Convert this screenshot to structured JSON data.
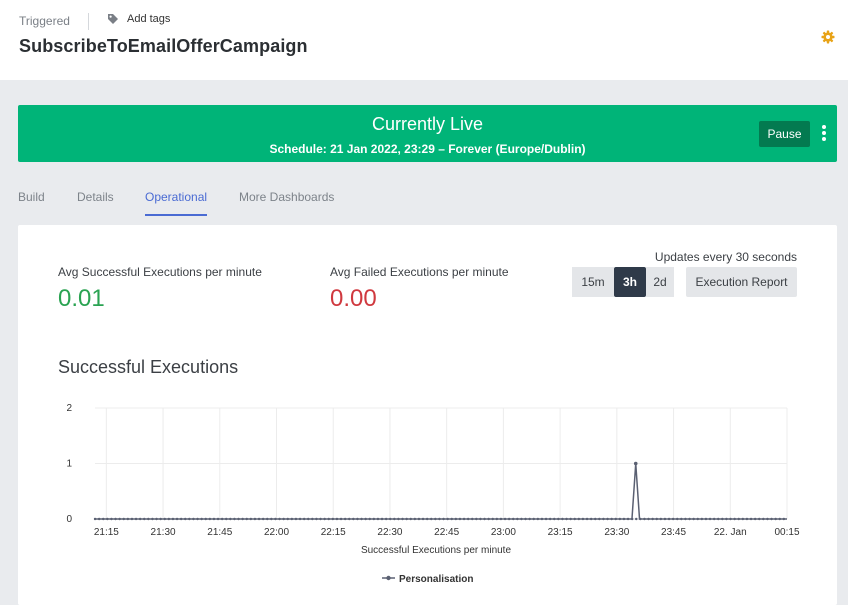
{
  "header": {
    "trigger_type": "Triggered",
    "add_tags_label": "Add tags",
    "campaign_name": "SubscribeToEmailOfferCampaign"
  },
  "banner": {
    "status": "Currently Live",
    "schedule": "Schedule: 21 Jan 2022, 23:29 – Forever (Europe/Dublin)",
    "pause_label": "Pause",
    "color": "#00b478"
  },
  "tabs": [
    {
      "label": "Build",
      "active": false
    },
    {
      "label": "Details",
      "active": false
    },
    {
      "label": "Operational",
      "active": true
    },
    {
      "label": "More Dashboards",
      "active": false
    }
  ],
  "stats": {
    "success_label": "Avg Successful Executions per minute",
    "success_value": "0.01",
    "success_color": "#2aa352",
    "failed_label": "Avg Failed Executions per minute",
    "failed_value": "0.00",
    "failed_color": "#d0393f"
  },
  "controls": {
    "updates_text": "Updates every 30 seconds",
    "ranges": [
      {
        "label": "15m",
        "active": false
      },
      {
        "label": "3h",
        "active": true
      },
      {
        "label": "2d",
        "active": false
      }
    ],
    "report_label": "Execution Report"
  },
  "chart": {
    "title": "Successful Executions",
    "xlabel": "Successful Executions per minute",
    "legend": "Personalisation",
    "ytick_labels": [
      "0",
      "1",
      "2"
    ],
    "xtick_labels": [
      "21:15",
      "21:30",
      "21:45",
      "22:00",
      "22:15",
      "22:30",
      "22:45",
      "23:00",
      "23:15",
      "23:30",
      "23:45",
      "22. Jan",
      "00:15"
    ]
  },
  "chart_data": {
    "type": "line",
    "title": "Successful Executions",
    "xlabel": "Successful Executions per minute",
    "ylabel": "",
    "ylim": [
      0,
      2
    ],
    "yticks": [
      0,
      1,
      2
    ],
    "xticks": [
      "21:15",
      "21:30",
      "21:45",
      "22:00",
      "22:15",
      "22:30",
      "22:45",
      "23:00",
      "23:15",
      "23:30",
      "23:45",
      "22. Jan",
      "00:15"
    ],
    "x_range_minutes": [
      1272,
      1455
    ],
    "grid": true,
    "legend_position": "bottom",
    "series": [
      {
        "name": "Personalisation",
        "color": "#5a6072",
        "baseline_value": 0,
        "points": [
          {
            "x": "21:12",
            "y": 0
          },
          {
            "x": "23:34",
            "y": 0
          },
          {
            "x": "23:35",
            "y": 1
          },
          {
            "x": "23:36",
            "y": 0
          },
          {
            "x": "00:15",
            "y": 0
          }
        ]
      }
    ]
  }
}
